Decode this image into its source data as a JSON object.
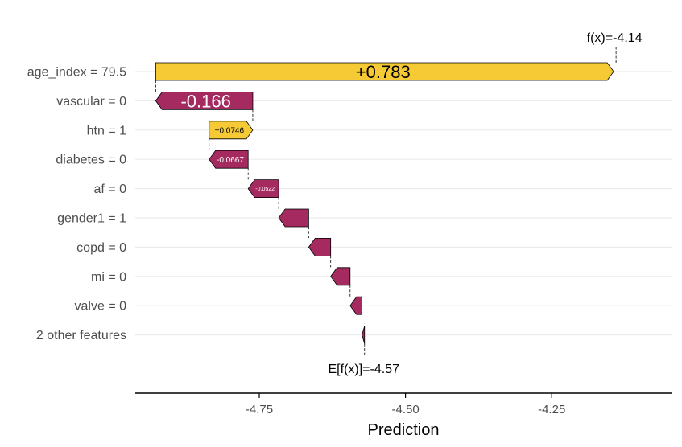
{
  "chart_data": {
    "type": "waterfall",
    "title": "",
    "xlabel": "Prediction",
    "ylabel": "",
    "xlim": [
      -4.92,
      -4.08
    ],
    "x_ticks": [
      -4.75,
      -4.5,
      -4.25
    ],
    "x_tick_labels": [
      "-4.75",
      "-4.50",
      "-4.25"
    ],
    "base_value": -4.57,
    "base_label": "E[f(x)]=-4.57",
    "final_value": -4.14,
    "final_label": "f(x)=-4.14",
    "colors": {
      "positive": "#F5CA35",
      "negative": "#A52A60"
    },
    "features": [
      {
        "label": "age_index = 79.5",
        "contribution": 0.783,
        "value_label": "+0.783"
      },
      {
        "label": "vascular = 0",
        "contribution": -0.166,
        "value_label": "-0.166"
      },
      {
        "label": "htn = 1",
        "contribution": 0.0746,
        "value_label": "+0.0746"
      },
      {
        "label": "diabetes = 0",
        "contribution": -0.0667,
        "value_label": "-0.0667"
      },
      {
        "label": "af = 0",
        "contribution": -0.0522,
        "value_label": "-0.0522"
      },
      {
        "label": "gender1 = 1",
        "contribution": -0.0513,
        "value_label": ""
      },
      {
        "label": "copd = 0",
        "contribution": -0.0376,
        "value_label": ""
      },
      {
        "label": "mi = 0",
        "contribution": -0.0332,
        "value_label": ""
      },
      {
        "label": "valve = 0",
        "contribution": -0.0203,
        "value_label": ""
      },
      {
        "label": "2 other features",
        "contribution": -0.0044,
        "value_label": ""
      }
    ]
  }
}
